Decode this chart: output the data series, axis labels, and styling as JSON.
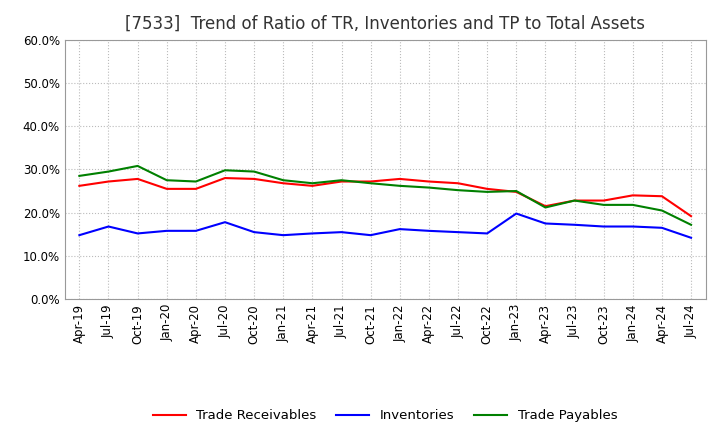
{
  "title": "[7533]  Trend of Ratio of TR, Inventories and TP to Total Assets",
  "ylim": [
    0.0,
    0.6
  ],
  "yticks": [
    0.0,
    0.1,
    0.2,
    0.3,
    0.4,
    0.5,
    0.6
  ],
  "x_labels": [
    "Apr-19",
    "Jul-19",
    "Oct-19",
    "Jan-20",
    "Apr-20",
    "Jul-20",
    "Oct-20",
    "Jan-21",
    "Apr-21",
    "Jul-21",
    "Oct-21",
    "Jan-22",
    "Apr-22",
    "Jul-22",
    "Oct-22",
    "Jan-23",
    "Apr-23",
    "Jul-23",
    "Oct-23",
    "Jan-24",
    "Apr-24",
    "Jul-24"
  ],
  "trade_receivables": [
    0.262,
    0.272,
    0.278,
    0.255,
    0.255,
    0.28,
    0.278,
    0.268,
    0.262,
    0.272,
    0.272,
    0.278,
    0.272,
    0.268,
    0.255,
    0.248,
    0.215,
    0.228,
    0.228,
    0.24,
    0.238,
    0.192
  ],
  "inventories": [
    0.148,
    0.168,
    0.152,
    0.158,
    0.158,
    0.178,
    0.155,
    0.148,
    0.152,
    0.155,
    0.148,
    0.162,
    0.158,
    0.155,
    0.152,
    0.198,
    0.175,
    0.172,
    0.168,
    0.168,
    0.165,
    0.142
  ],
  "trade_payables": [
    0.285,
    0.295,
    0.308,
    0.275,
    0.272,
    0.298,
    0.295,
    0.275,
    0.268,
    0.275,
    0.268,
    0.262,
    0.258,
    0.252,
    0.248,
    0.25,
    0.212,
    0.228,
    0.218,
    0.218,
    0.205,
    0.172
  ],
  "tr_color": "#FF0000",
  "inv_color": "#0000FF",
  "tp_color": "#008000",
  "background_color": "#FFFFFF",
  "grid_color": "#BBBBBB",
  "title_fontsize": 12,
  "tick_fontsize": 8.5,
  "legend_fontsize": 9.5
}
